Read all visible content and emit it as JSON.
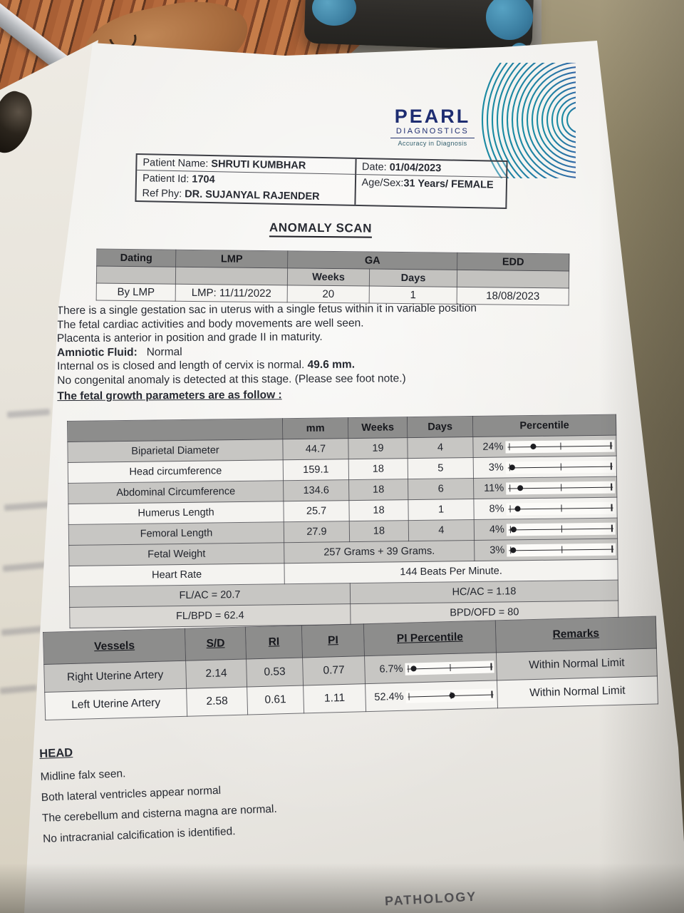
{
  "logo": {
    "name": "PEARL",
    "type": "DIAGNOSTICS",
    "tagline": "Accuracy in Diagnosis",
    "colors": {
      "navy": "#1e2d71",
      "fan_teal": "#1a8ba2",
      "fan_magenta": "#b23190"
    }
  },
  "patient": {
    "name_label": "Patient Name:",
    "name": "SHRUTI KUMBHAR",
    "id_label": "Patient Id:",
    "id": "1704",
    "ref_label": "Ref Phy:",
    "ref": "DR. SUJANYAL RAJENDER",
    "date_label": "Date:",
    "date": "01/04/2023",
    "agesex_label": "Age/Sex:",
    "agesex": "31 Years/ FEMALE"
  },
  "title": "ANOMALY SCAN",
  "dating_table": {
    "headers": {
      "dating": "Dating",
      "lmp": "LMP",
      "ga": "GA",
      "weeks": "Weeks",
      "days": "Days",
      "edd": "EDD"
    },
    "row": {
      "dating": "By LMP",
      "lmp": "LMP: 11/11/2022",
      "weeks": "20",
      "days": "1",
      "edd": "18/08/2023"
    }
  },
  "findings": {
    "line1": "There is a single gestation sac in uterus with a single fetus within it in variable position",
    "line2": "The fetal cardiac activities and body movements are well seen.",
    "line3": "Placenta is anterior  in position and grade II  in maturity.",
    "line4_label": "Amniotic Fluid:",
    "line4_value": "Normal",
    "line5": "Internal os is closed and length of cervix is normal.",
    "line5_bold": "49.6 mm.",
    "line6": "No congenital anomaly is detected at this stage. (Please see foot note.)",
    "growth_heading": "The fetal growth parameters are as follow :"
  },
  "growth_table": {
    "headers": {
      "mm": "mm",
      "weeks": "Weeks",
      "days": "Days",
      "percentile": "Percentile"
    },
    "rows": [
      {
        "label": "Biparietal Diameter",
        "mm": "44.7",
        "weeks": "19",
        "days": "4",
        "pct_label": "24%",
        "pct": 24
      },
      {
        "label": "Head circumference",
        "mm": "159.1",
        "weeks": "18",
        "days": "5",
        "pct_label": "3%",
        "pct": 3
      },
      {
        "label": "Abdominal Circumference",
        "mm": "134.6",
        "weeks": "18",
        "days": "6",
        "pct_label": "11%",
        "pct": 11
      },
      {
        "label": "Humerus Length",
        "mm": "25.7",
        "weeks": "18",
        "days": "1",
        "pct_label": "8%",
        "pct": 8
      },
      {
        "label": "Femoral Length",
        "mm": "27.9",
        "weeks": "18",
        "days": "4",
        "pct_label": "4%",
        "pct": 4
      }
    ],
    "fetal_weight": {
      "label": "Fetal Weight",
      "value": "257 Grams + 39 Grams.",
      "pct_label": "3%",
      "pct": 3
    },
    "heart_rate": {
      "label": "Heart Rate",
      "value": "144 Beats Per Minute."
    },
    "ratios": [
      {
        "left": "FL/AC = 20.7",
        "right": "HC/AC = 1.18"
      },
      {
        "left": "FL/BPD = 62.4",
        "right": "BPD/OFD = 80"
      }
    ]
  },
  "vessels_table": {
    "headers": {
      "vessels": "Vessels",
      "sd": "S/D",
      "ri": "RI",
      "pi": "PI",
      "pip": "PI Percentile",
      "remarks": "Remarks"
    },
    "rows": [
      {
        "vessel": "Right Uterine Artery",
        "sd": "2.14",
        "ri": "0.53",
        "pi": "0.77",
        "pct_label": "6.7%",
        "pct": 6.7,
        "remarks": "Within Normal Limit"
      },
      {
        "vessel": "Left Uterine Artery",
        "sd": "2.58",
        "ri": "0.61",
        "pi": "1.11",
        "pct_label": "52.4%",
        "pct": 52.4,
        "remarks": "Within Normal Limit"
      }
    ]
  },
  "head_section": {
    "heading": "HEAD",
    "lines": [
      "Midline falx seen.",
      "Both lateral ventricles appear normal",
      "The cerebellum and cisterna magna  are normal.",
      "No intracranial calcification is identified."
    ]
  },
  "footer_partial": "PATHOLOGY"
}
